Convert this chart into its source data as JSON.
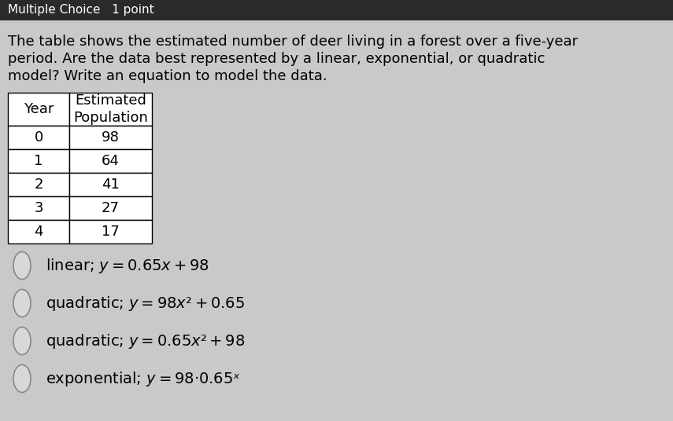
{
  "title_lines": [
    "The table shows the estimated number of deer living in a forest over a five-year",
    "period. Are the data best represented by a linear, exponential, or quadratic",
    "model? Write an equation to model the data."
  ],
  "header_row": [
    "Year",
    "Estimated\nPopulation"
  ],
  "table_data": [
    [
      "0",
      "98"
    ],
    [
      "1",
      "64"
    ],
    [
      "2",
      "41"
    ],
    [
      "3",
      "27"
    ],
    [
      "4",
      "17"
    ]
  ],
  "choices_plain": [
    "linear; ",
    "quadratic; ",
    "quadratic; ",
    "exponential; "
  ],
  "choices_math": [
    "y = 0.65x + 98",
    "y = 98x² + 0.65",
    "y = 0.65x² + 98",
    "y = 98· 0.65ˣ"
  ],
  "bg_color": "#c9c9c9",
  "top_bar_color": "#2a2a2a",
  "top_text": "Multiple Choice   1 point",
  "selected_choice": -1,
  "font_size_body": 13,
  "font_size_table": 13,
  "font_size_choices": 14,
  "font_size_top": 11
}
